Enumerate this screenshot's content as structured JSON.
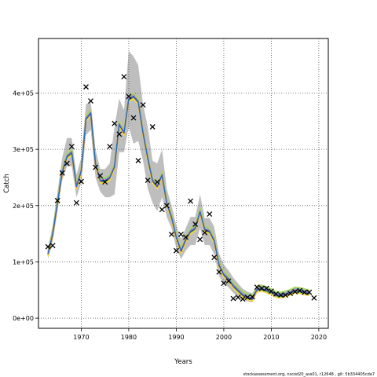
{
  "chart_data": {
    "type": "line",
    "title": "",
    "xlabel": "Years",
    "ylabel": "Catch",
    "footer_note": "stockassessment.org, nscod20_ass01, r12648 , git: 5b334405cda7",
    "xlim": [
      1961,
      2022
    ],
    "ylim": [
      -18000,
      497000
    ],
    "x_ticks": [
      1970,
      1980,
      1990,
      2000,
      2010,
      2020
    ],
    "x_tick_labels": [
      "1970",
      "1980",
      "1990",
      "2000",
      "2010",
      "2020"
    ],
    "y_ticks": [
      0,
      100000,
      200000,
      300000,
      400000
    ],
    "y_tick_labels": [
      "0e+00",
      "1e+05",
      "2e+05",
      "3e+05",
      "4e+05"
    ],
    "grid": true,
    "ribbon_color": "#bebebe",
    "observed_marker": "x",
    "line_colors": [
      "#8da0cb",
      "#66c2a5",
      "#4daf4a",
      "#a6d854",
      "#ffd92f",
      "#e78ac3",
      "#6a3d9a",
      "#1f78b4"
    ],
    "estimate": {
      "x": [
        1963,
        1964,
        1965,
        1966,
        1967,
        1968,
        1969,
        1970,
        1971,
        1972,
        1973,
        1974,
        1975,
        1976,
        1977,
        1978,
        1979,
        1980,
        1981,
        1982,
        1983,
        1984,
        1985,
        1986,
        1987,
        1988,
        1989,
        1990,
        1991,
        1992,
        1993,
        1994,
        1995,
        1996,
        1997,
        1998,
        1999,
        2000,
        2001,
        2002,
        2003,
        2004,
        2005,
        2006,
        2007,
        2008,
        2009,
        2010,
        2011,
        2012,
        2013,
        2014,
        2015,
        2016,
        2017,
        2018
      ],
      "y": [
        115000,
        150000,
        205000,
        260000,
        288000,
        295000,
        235000,
        262000,
        355000,
        365000,
        275000,
        245000,
        245000,
        250000,
        270000,
        345000,
        330000,
        390000,
        395000,
        385000,
        330000,
        285000,
        245000,
        235000,
        255000,
        205000,
        180000,
        145000,
        120000,
        140000,
        155000,
        160000,
        190000,
        158000,
        155000,
        138000,
        95000,
        78000,
        70000,
        58000,
        50000,
        42000,
        38000,
        35000,
        52000,
        53000,
        50000,
        47000,
        42000,
        41000,
        43000,
        46000,
        50000,
        49000,
        47000,
        45000
      ],
      "lower": [
        105000,
        135000,
        190000,
        245000,
        270000,
        270000,
        215000,
        240000,
        325000,
        335000,
        250000,
        225000,
        215000,
        215000,
        220000,
        295000,
        295000,
        340000,
        310000,
        315000,
        280000,
        230000,
        205000,
        190000,
        215000,
        180000,
        160000,
        125000,
        105000,
        120000,
        130000,
        130000,
        160000,
        130000,
        130000,
        113000,
        75000,
        62000,
        55000,
        45000,
        38000,
        33000,
        30000,
        28000,
        45000,
        47000,
        44000,
        41000,
        37000,
        36000,
        38000,
        41000,
        45000,
        44000,
        42000,
        40000
      ],
      "upper": [
        125000,
        165000,
        225000,
        285000,
        320000,
        320000,
        255000,
        285000,
        380000,
        385000,
        300000,
        265000,
        265000,
        275000,
        340000,
        390000,
        370000,
        475000,
        465000,
        450000,
        380000,
        340000,
        280000,
        275000,
        300000,
        230000,
        200000,
        165000,
        140000,
        160000,
        180000,
        180000,
        220000,
        178000,
        178000,
        162000,
        115000,
        95000,
        85000,
        72000,
        62000,
        52000,
        47000,
        44000,
        59000,
        60000,
        57000,
        53000,
        48000,
        47000,
        49000,
        52000,
        56000,
        55000,
        53000,
        50000
      ]
    },
    "observed": {
      "x": [
        1963,
        1964,
        1965,
        1966,
        1967,
        1968,
        1969,
        1970,
        1971,
        1972,
        1973,
        1974,
        1975,
        1976,
        1977,
        1978,
        1979,
        1980,
        1981,
        1982,
        1983,
        1984,
        1985,
        1986,
        1987,
        1988,
        1989,
        1990,
        1991,
        1992,
        1993,
        1994,
        1995,
        1996,
        1997,
        1998,
        1999,
        2000,
        2001,
        2002,
        2003,
        2004,
        2005,
        2006,
        2007,
        2008,
        2009,
        2010,
        2011,
        2012,
        2013,
        2014,
        2015,
        2016,
        2017,
        2018,
        2019
      ],
      "y": [
        127000,
        129000,
        209000,
        258000,
        275000,
        305000,
        205000,
        243000,
        411000,
        386000,
        268000,
        253000,
        242000,
        305000,
        346000,
        327000,
        429000,
        394000,
        356000,
        280000,
        379000,
        245000,
        340000,
        242000,
        193000,
        200000,
        149000,
        120000,
        149000,
        144000,
        208000,
        167000,
        140000,
        152000,
        185000,
        108000,
        82000,
        62000,
        66000,
        35000,
        37000,
        34000,
        37000,
        38000,
        55000,
        53000,
        53000,
        48000,
        43000,
        41000,
        41000,
        44000,
        47000,
        49000,
        46000,
        46000,
        36000
      ]
    }
  }
}
